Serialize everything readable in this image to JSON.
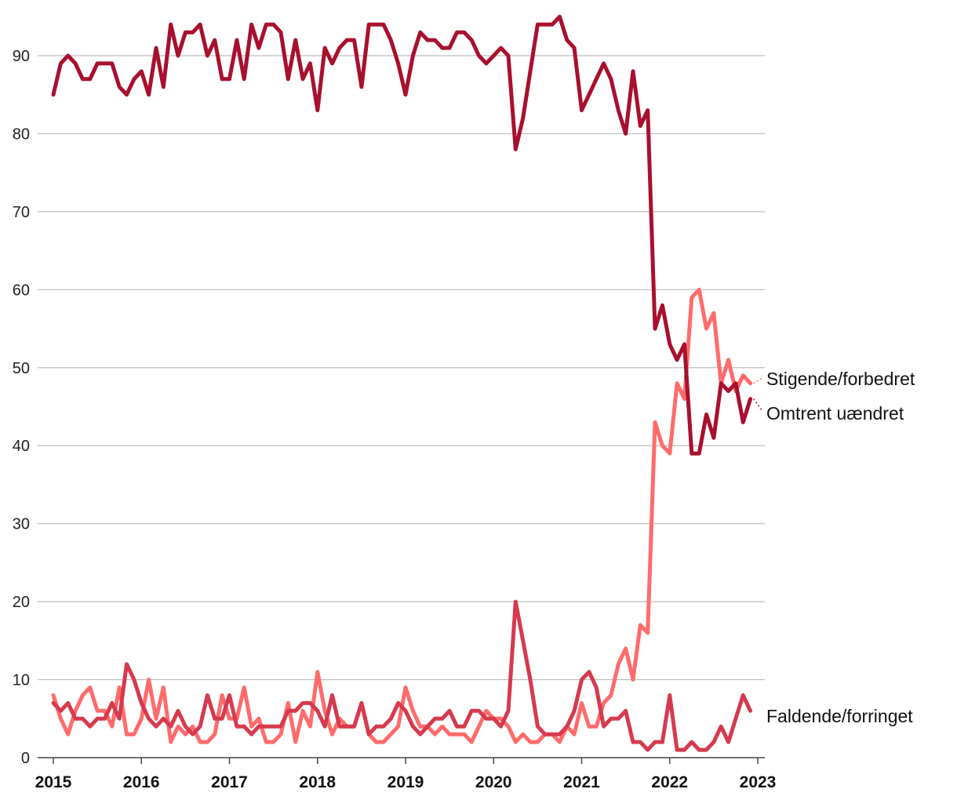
{
  "chart_data": {
    "type": "line",
    "title": "",
    "xlabel": "",
    "ylabel": "",
    "x_start": "2015-01",
    "x_frequency": "monthly",
    "x_tick_labels": [
      "2015",
      "2016",
      "2017",
      "2018",
      "2019",
      "2020",
      "2021",
      "2022",
      "2023"
    ],
    "ylim": [
      0,
      95
    ],
    "y_ticks": [
      0,
      10,
      20,
      30,
      40,
      50,
      60,
      70,
      80,
      90
    ],
    "grid": true,
    "legend": "inline-right",
    "series": [
      {
        "name": "Omtrent uændret",
        "color": "#a8102e",
        "values": [
          85,
          89,
          90,
          89,
          87,
          87,
          89,
          89,
          89,
          86,
          85,
          87,
          88,
          85,
          91,
          86,
          94,
          90,
          93,
          93,
          94,
          90,
          92,
          87,
          87,
          92,
          87,
          94,
          91,
          94,
          94,
          93,
          87,
          92,
          87,
          89,
          83,
          91,
          89,
          91,
          92,
          92,
          86,
          94,
          94,
          94,
          92,
          89,
          85,
          90,
          93,
          92,
          92,
          91,
          91,
          93,
          93,
          92,
          90,
          89,
          90,
          91,
          90,
          78,
          82,
          88,
          94,
          94,
          94,
          95,
          92,
          91,
          83,
          85,
          87,
          89,
          87,
          83,
          80,
          88,
          81,
          83,
          55,
          58,
          53,
          51,
          53,
          39,
          39,
          44,
          41,
          48,
          47,
          48,
          43,
          46
        ]
      },
      {
        "name": "Stigende/forbedret",
        "color": "#ff6b6b",
        "values": [
          8,
          5,
          3,
          6,
          8,
          9,
          6,
          6,
          4,
          9,
          3,
          3,
          5,
          10,
          5,
          9,
          2,
          4,
          3,
          4,
          2,
          2,
          3,
          8,
          5,
          5,
          9,
          4,
          5,
          2,
          2,
          3,
          7,
          2,
          6,
          4,
          11,
          6,
          3,
          5,
          4,
          4,
          7,
          3,
          2,
          2,
          3,
          4,
          9,
          6,
          4,
          4,
          3,
          4,
          3,
          3,
          3,
          2,
          4,
          6,
          5,
          5,
          4,
          2,
          3,
          2,
          2,
          3,
          3,
          2,
          4,
          3,
          7,
          4,
          4,
          7,
          8,
          12,
          14,
          10,
          17,
          16,
          43,
          40,
          39,
          48,
          46,
          59,
          60,
          55,
          57,
          48,
          51,
          47,
          49,
          48
        ]
      },
      {
        "name": "Faldende/forringet",
        "color": "#d63a4d",
        "values": [
          7,
          6,
          7,
          5,
          5,
          4,
          5,
          5,
          7,
          5,
          12,
          10,
          7,
          5,
          4,
          5,
          4,
          6,
          4,
          3,
          4,
          8,
          5,
          5,
          8,
          4,
          4,
          3,
          4,
          4,
          4,
          4,
          6,
          6,
          7,
          7,
          6,
          4,
          8,
          4,
          4,
          4,
          7,
          3,
          4,
          4,
          5,
          7,
          6,
          4,
          3,
          4,
          5,
          5,
          6,
          4,
          4,
          6,
          6,
          5,
          5,
          4,
          6,
          20,
          15,
          10,
          4,
          3,
          3,
          3,
          4,
          6,
          10,
          11,
          9,
          4,
          5,
          5,
          6,
          2,
          2,
          1,
          2,
          2,
          8,
          1,
          1,
          2,
          1,
          1,
          2,
          4,
          2,
          5,
          8,
          6
        ]
      }
    ],
    "labels": {
      "stigende": "Stigende/forbedret",
      "uaendret": "Omtrent uændret",
      "faldende": "Faldende/forringet"
    }
  }
}
